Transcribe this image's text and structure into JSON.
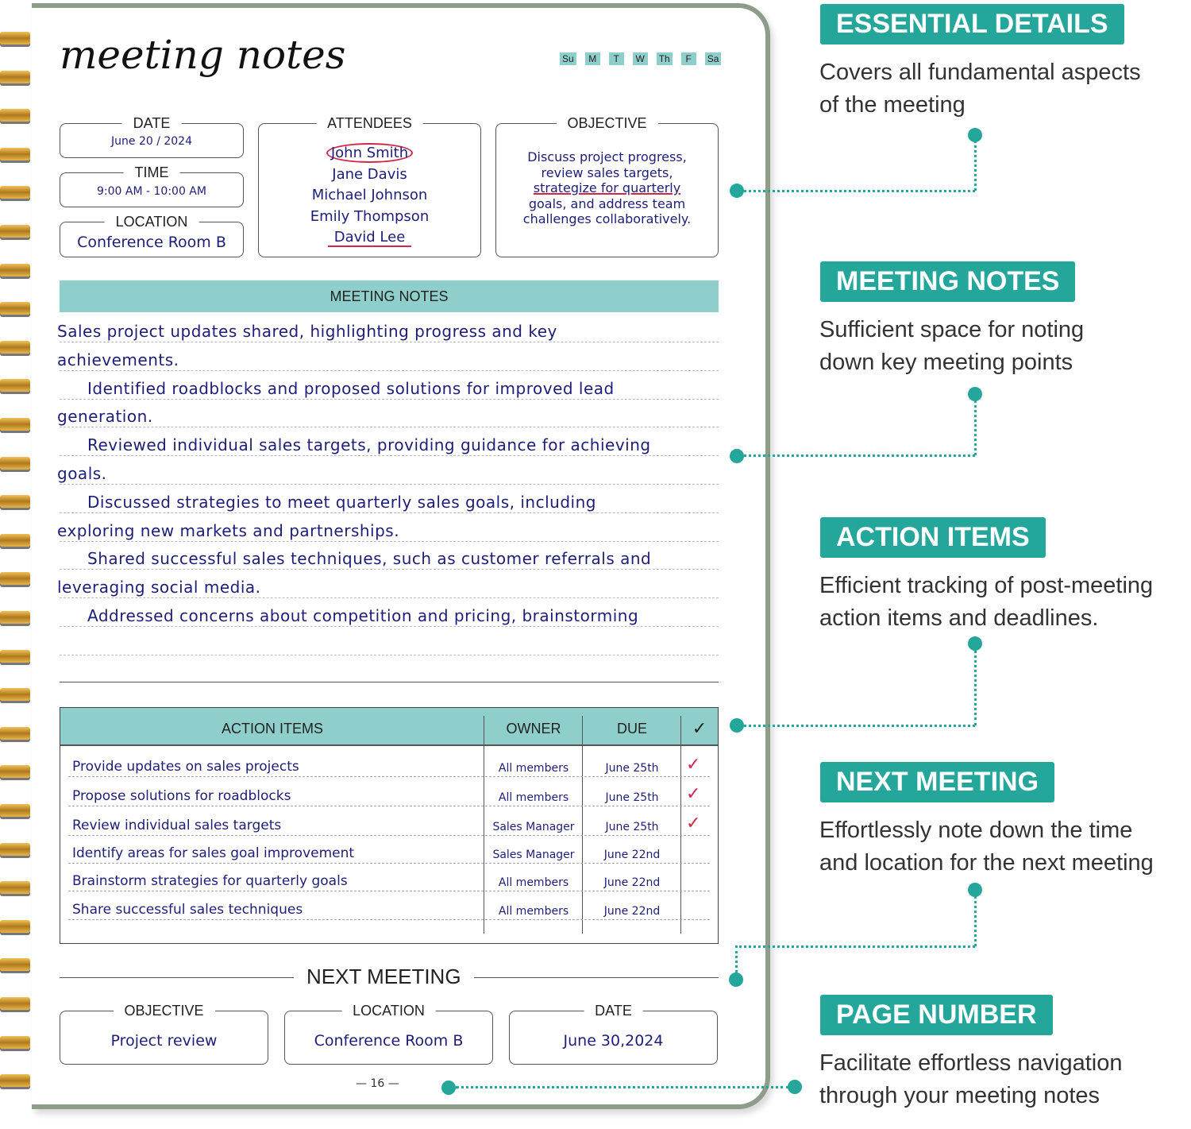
{
  "planner": {
    "title": "meeting notes",
    "days": [
      "Su",
      "M",
      "T",
      "W",
      "Th",
      "F",
      "Sa"
    ],
    "date": {
      "label": "DATE",
      "value": "June 20 / 2024"
    },
    "time": {
      "label": "TIME",
      "value": "9:00 AM - 10:00 AM"
    },
    "location": {
      "label": "LOCATION",
      "value": "Conference Room B"
    },
    "attendees": {
      "label": "ATTENDEES",
      "names": [
        "John Smith",
        "Jane Davis",
        "Michael Johnson",
        "Emily Thompson",
        "David Lee"
      ]
    },
    "objective": {
      "label": "OBJECTIVE",
      "lines": [
        "Discuss project progress,",
        "review sales targets,",
        "strategize for quarterly",
        "goals, and address team",
        "challenges collaboratively."
      ]
    },
    "meeting_notes": {
      "label": "MEETING NOTES",
      "lines": [
        "Sales project updates shared, highlighting progress and key",
        "achievements.",
        "Identified roadblocks and proposed solutions for improved lead",
        "generation.",
        "Reviewed individual sales targets, providing guidance for achieving",
        "goals.",
        "Discussed strategies to meet quarterly sales goals, including",
        "exploring new markets and partnerships.",
        "Shared successful sales techniques, such as customer referrals and",
        "leveraging social media.",
        "Addressed concerns about competition and pricing, brainstorming"
      ]
    },
    "action_items": {
      "headers": [
        "ACTION ITEMS",
        "OWNER",
        "DUE",
        "✓"
      ],
      "rows": [
        {
          "item": "Provide updates on sales projects",
          "owner": "All members",
          "due": "June 25th",
          "done": "✓"
        },
        {
          "item": "Propose solutions for roadblocks",
          "owner": "All members",
          "due": "June 25th",
          "done": "✓"
        },
        {
          "item": "Review individual sales targets",
          "owner": "Sales Manager",
          "due": "June 25th",
          "done": "✓"
        },
        {
          "item": "Identify areas for sales goal improvement",
          "owner": "Sales Manager",
          "due": "June 22nd",
          "done": ""
        },
        {
          "item": "Brainstorm strategies for quarterly goals",
          "owner": "All members",
          "due": "June 22nd",
          "done": ""
        },
        {
          "item": "Share successful sales techniques",
          "owner": "All members",
          "due": "June 22nd",
          "done": ""
        }
      ]
    },
    "next_meeting": {
      "heading": "NEXT MEETING",
      "objective": {
        "label": "OBJECTIVE",
        "value": "Project review"
      },
      "location": {
        "label": "LOCATION",
        "value": "Conference Room B"
      },
      "date": {
        "label": "DATE",
        "value": "June 30,2024"
      }
    },
    "page_number": "16"
  },
  "callouts": [
    {
      "title": "ESSENTIAL DETAILS",
      "text": [
        "Covers all fundamental aspects",
        "of the meeting"
      ]
    },
    {
      "title": "MEETING NOTES",
      "text": [
        "Sufficient space for noting",
        "down key meeting points"
      ]
    },
    {
      "title": "ACTION ITEMS",
      "text": [
        "Efficient tracking of post-meeting",
        "action items and deadlines."
      ]
    },
    {
      "title": "NEXT MEETING",
      "text": [
        "Effortlessly note down the time",
        "and location for the next meeting"
      ]
    },
    {
      "title": "PAGE NUMBER",
      "text": [
        "Facilitate effortless navigation",
        "through your meeting notes"
      ]
    }
  ],
  "colors": {
    "accent": "#25a69b",
    "header_fill": "#8fcfcb",
    "ink": "#1e1e78",
    "markup": "#d0284a"
  }
}
